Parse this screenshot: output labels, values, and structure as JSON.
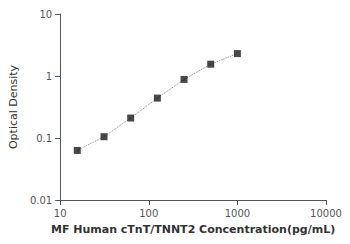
{
  "chart_data": {
    "type": "line",
    "xlabel": "MF Human cTnT/TNNT2 Concentration(pg/mL)",
    "ylabel": "Optical Density",
    "x": [
      15.6,
      31.25,
      62.5,
      125,
      250,
      500,
      1000
    ],
    "series": [
      {
        "type": "line",
        "color": "#888888",
        "line_style": "dotted",
        "values": [
          0.063,
          0.105,
          0.21,
          0.44,
          0.88,
          1.55,
          2.3
        ]
      },
      {
        "type": "scatter",
        "color": "#1a1a1a",
        "marker": "square",
        "values": [
          0.063,
          0.105,
          0.21,
          0.44,
          0.88,
          1.55,
          2.3
        ]
      }
    ],
    "xlim": [
      10,
      10000
    ],
    "ylim": [
      0.01,
      10
    ],
    "xticks": [
      10,
      100,
      1000,
      10000
    ],
    "yticks": [
      0.01,
      0.1,
      1,
      10
    ],
    "log": true,
    "grid": false
  }
}
